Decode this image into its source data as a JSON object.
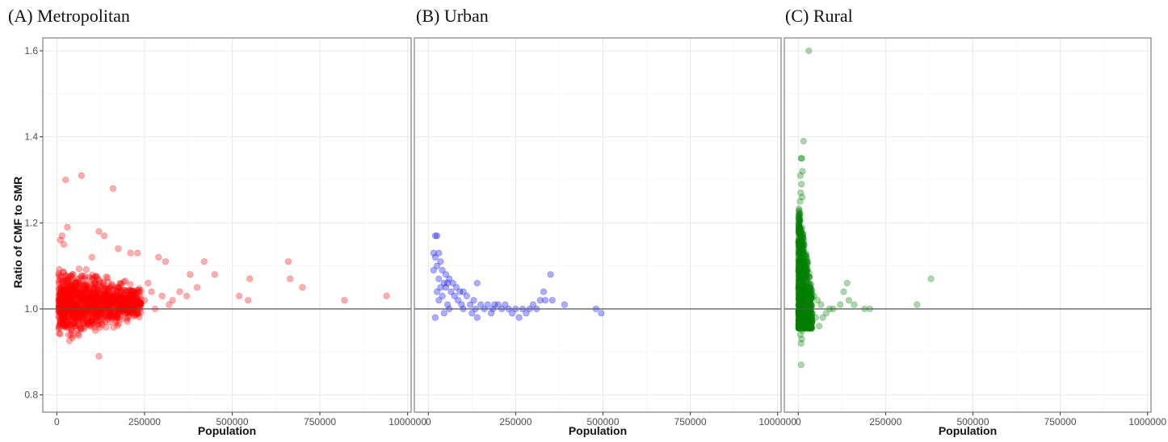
{
  "figure": {
    "ylabel": "Ratio of CMF to SMR",
    "xlabel": "Population"
  },
  "chart_data": [
    {
      "type": "scatter",
      "title": "(A) Metropolitan",
      "xlabel": "Population",
      "ylabel": "Ratio of CMF to SMR",
      "xlim": [
        -40000,
        1010000
      ],
      "ylim": [
        0.76,
        1.63
      ],
      "xticks": [
        "0",
        "250000",
        "500000",
        "750000",
        "1000000"
      ],
      "xtick_values": [
        0,
        250000,
        500000,
        750000,
        1000000
      ],
      "yticks": [
        "0.8",
        "1.0",
        "1.2",
        "1.4",
        "1.6"
      ],
      "ytick_values": [
        0.8,
        1.0,
        1.2,
        1.4,
        1.6
      ],
      "reference_line": 1.0,
      "grid": true,
      "color": "#ff0000",
      "cluster": {
        "x_min": 5000,
        "x_max": 240000,
        "y_min": 0.96,
        "y_max": 1.08,
        "density": "high"
      },
      "points": [
        [
          25000,
          1.3
        ],
        [
          70000,
          1.31
        ],
        [
          160000,
          1.28
        ],
        [
          10000,
          1.16
        ],
        [
          15000,
          1.17
        ],
        [
          20000,
          1.15
        ],
        [
          30000,
          1.19
        ],
        [
          120000,
          1.18
        ],
        [
          135000,
          1.17
        ],
        [
          100000,
          1.12
        ],
        [
          175000,
          1.14
        ],
        [
          210000,
          1.13
        ],
        [
          230000,
          1.13
        ],
        [
          290000,
          1.12
        ],
        [
          310000,
          1.11
        ],
        [
          120000,
          0.89
        ],
        [
          110000,
          0.95
        ],
        [
          40000,
          0.94
        ],
        [
          60000,
          0.95
        ],
        [
          10000,
          0.97
        ],
        [
          15000,
          0.98
        ],
        [
          20000,
          0.96
        ],
        [
          80000,
          0.96
        ],
        [
          260000,
          1.06
        ],
        [
          270000,
          1.04
        ],
        [
          300000,
          1.03
        ],
        [
          330000,
          1.02
        ],
        [
          350000,
          1.04
        ],
        [
          370000,
          1.03
        ],
        [
          380000,
          1.08
        ],
        [
          420000,
          1.11
        ],
        [
          450000,
          1.08
        ],
        [
          400000,
          1.05
        ],
        [
          520000,
          1.03
        ],
        [
          550000,
          1.07
        ],
        [
          545000,
          1.02
        ],
        [
          660000,
          1.11
        ],
        [
          665000,
          1.07
        ],
        [
          700000,
          1.05
        ],
        [
          820000,
          1.02
        ],
        [
          940000,
          1.03
        ],
        [
          280000,
          1.0
        ],
        [
          320000,
          1.01
        ],
        [
          250000,
          1.02
        ]
      ]
    },
    {
      "type": "scatter",
      "title": "(B) Urban",
      "xlabel": "Population",
      "ylabel": "",
      "xlim": [
        -40000,
        1010000
      ],
      "ylim": [
        0.76,
        1.63
      ],
      "xticks": [
        "0",
        "250000",
        "500000",
        "750000",
        "1000000"
      ],
      "xtick_values": [
        0,
        250000,
        500000,
        750000,
        1000000
      ],
      "reference_line": 1.0,
      "grid": true,
      "color": "#0000ff",
      "points": [
        [
          20000,
          1.17
        ],
        [
          25000,
          1.17
        ],
        [
          15000,
          1.13
        ],
        [
          20000,
          1.12
        ],
        [
          30000,
          1.13
        ],
        [
          25000,
          1.1
        ],
        [
          35000,
          1.11
        ],
        [
          40000,
          1.09
        ],
        [
          15000,
          1.09
        ],
        [
          50000,
          1.08
        ],
        [
          30000,
          1.07
        ],
        [
          45000,
          1.06
        ],
        [
          55000,
          1.06
        ],
        [
          60000,
          1.07
        ],
        [
          70000,
          1.06
        ],
        [
          35000,
          1.05
        ],
        [
          50000,
          1.05
        ],
        [
          80000,
          1.05
        ],
        [
          90000,
          1.04
        ],
        [
          100000,
          1.04
        ],
        [
          25000,
          1.04
        ],
        [
          65000,
          1.04
        ],
        [
          140000,
          1.06
        ],
        [
          40000,
          1.03
        ],
        [
          75000,
          1.03
        ],
        [
          110000,
          1.03
        ],
        [
          130000,
          1.02
        ],
        [
          30000,
          1.02
        ],
        [
          85000,
          1.02
        ],
        [
          55000,
          1.01
        ],
        [
          95000,
          1.01
        ],
        [
          120000,
          1.01
        ],
        [
          150000,
          1.01
        ],
        [
          170000,
          1.01
        ],
        [
          190000,
          1.01
        ],
        [
          200000,
          1.01
        ],
        [
          210000,
          1.0
        ],
        [
          230000,
          1.0
        ],
        [
          250000,
          1.0
        ],
        [
          270000,
          1.0
        ],
        [
          60000,
          1.0
        ],
        [
          100000,
          1.0
        ],
        [
          135000,
          1.0
        ],
        [
          160000,
          1.0
        ],
        [
          185000,
          1.0
        ],
        [
          290000,
          1.0
        ],
        [
          310000,
          1.0
        ],
        [
          20000,
          0.98
        ],
        [
          45000,
          0.99
        ],
        [
          125000,
          0.99
        ],
        [
          140000,
          0.98
        ],
        [
          180000,
          0.99
        ],
        [
          240000,
          0.99
        ],
        [
          260000,
          0.98
        ],
        [
          280000,
          0.99
        ],
        [
          300000,
          1.01
        ],
        [
          320000,
          1.02
        ],
        [
          330000,
          1.04
        ],
        [
          335000,
          1.02
        ],
        [
          350000,
          1.08
        ],
        [
          355000,
          1.02
        ],
        [
          390000,
          1.01
        ],
        [
          480000,
          1.0
        ],
        [
          495000,
          0.99
        ],
        [
          220000,
          1.01
        ]
      ]
    },
    {
      "type": "scatter",
      "title": "(C) Rural",
      "xlabel": "Population",
      "ylabel": "",
      "xlim": [
        -40000,
        1010000
      ],
      "ylim": [
        0.76,
        1.63
      ],
      "xticks": [
        "0",
        "250000",
        "500000",
        "750000",
        "1000000"
      ],
      "xtick_values": [
        0,
        250000,
        500000,
        750000,
        1000000
      ],
      "reference_line": 1.0,
      "grid": true,
      "color": "#008000",
      "cluster": {
        "x_min": 1000,
        "x_max": 40000,
        "y_min": 0.95,
        "y_max": 1.24,
        "density": "high"
      },
      "points": [
        [
          30000,
          1.6
        ],
        [
          15000,
          1.39
        ],
        [
          8000,
          1.35
        ],
        [
          10000,
          1.35
        ],
        [
          12000,
          1.32
        ],
        [
          6000,
          1.31
        ],
        [
          9000,
          1.29
        ],
        [
          7000,
          1.27
        ],
        [
          11000,
          1.26
        ],
        [
          5000,
          1.25
        ],
        [
          8000,
          0.87
        ],
        [
          8000,
          0.92
        ],
        [
          10000,
          0.93
        ],
        [
          6000,
          0.94
        ],
        [
          12000,
          0.95
        ],
        [
          60000,
          0.96
        ],
        [
          40000,
          0.97
        ],
        [
          50000,
          0.98
        ],
        [
          70000,
          0.98
        ],
        [
          80000,
          0.99
        ],
        [
          100000,
          1.0
        ],
        [
          120000,
          1.01
        ],
        [
          130000,
          1.04
        ],
        [
          140000,
          1.06
        ],
        [
          145000,
          1.02
        ],
        [
          160000,
          1.01
        ],
        [
          190000,
          1.0
        ],
        [
          205000,
          1.0
        ],
        [
          340000,
          1.01
        ],
        [
          380000,
          1.07
        ],
        [
          45000,
          1.03
        ],
        [
          55000,
          1.02
        ],
        [
          65000,
          1.01
        ],
        [
          90000,
          1.0
        ],
        [
          35000,
          1.05
        ]
      ]
    }
  ]
}
